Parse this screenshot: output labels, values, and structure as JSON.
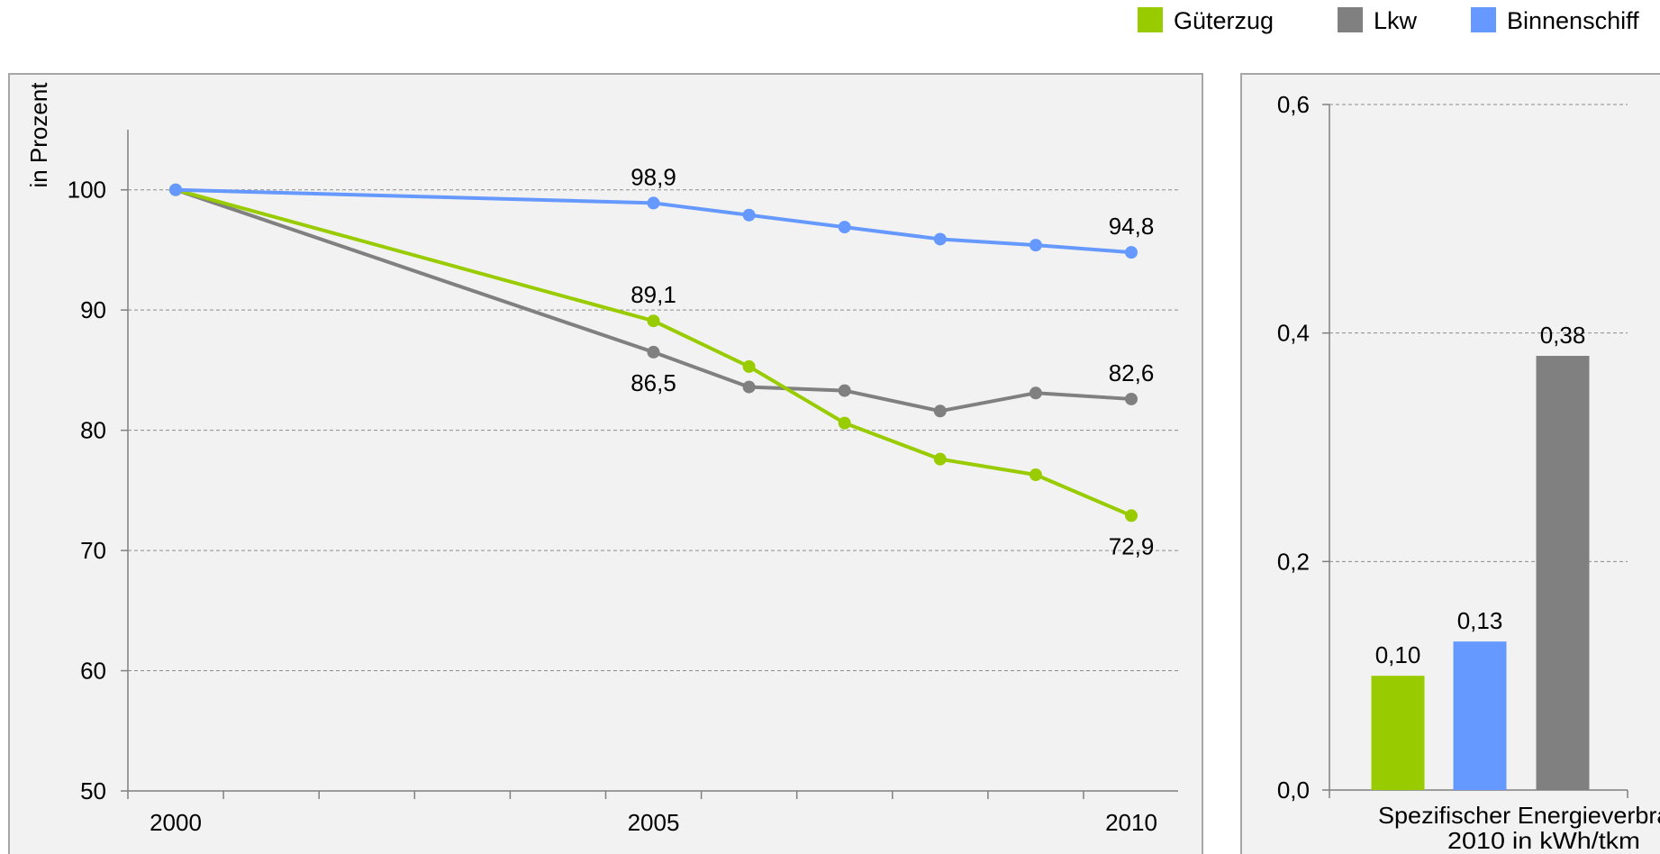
{
  "colors": {
    "gueterzug": "#99cc00",
    "lkw": "#808080",
    "binnenschiff": "#6699ff",
    "panel_bg": "#f2f2f2",
    "panel_border": "#a6a6a6",
    "grid": "#8c8c8c"
  },
  "legend": [
    {
      "label": "Güterzug",
      "color": "#99cc00"
    },
    {
      "label": "Lkw",
      "color": "#808080"
    },
    {
      "label": "Binnenschiff",
      "color": "#6699ff"
    }
  ],
  "chart_data": [
    {
      "type": "line",
      "ylabel": "in Prozent",
      "xlim": [
        2000,
        2011
      ],
      "ylim": [
        50,
        105
      ],
      "x_ticks": [
        2000,
        2005,
        2010
      ],
      "y_ticks": [
        50,
        60,
        70,
        80,
        90,
        100
      ],
      "grid": true,
      "legend_position": "top-right",
      "x": [
        2000,
        2005,
        2006,
        2007,
        2008,
        2009,
        2010
      ],
      "series": [
        {
          "name": "Binnenschiff",
          "x": [
            2000,
            2005,
            2006,
            2007,
            2008,
            2009,
            2010
          ],
          "values": [
            100,
            98.9,
            97.9,
            96.9,
            95.9,
            95.4,
            94.8
          ],
          "data_labels": [
            {
              "x": 2005,
              "text": "98,9",
              "pos": "above"
            },
            {
              "x": 2010,
              "text": "94,8",
              "pos": "above"
            }
          ]
        },
        {
          "name": "Güterzug",
          "x": [
            2000,
            2005,
            2006,
            2007,
            2008,
            2009,
            2010
          ],
          "values": [
            100,
            89.1,
            85.3,
            80.6,
            77.6,
            76.3,
            72.9
          ],
          "data_labels": [
            {
              "x": 2005,
              "text": "89,1",
              "pos": "above"
            },
            {
              "x": 2010,
              "text": "72,9",
              "pos": "below"
            }
          ]
        },
        {
          "name": "Lkw",
          "x": [
            2000,
            2005,
            2006,
            2007,
            2008,
            2009,
            2010
          ],
          "values": [
            100,
            86.5,
            83.6,
            83.3,
            81.6,
            83.1,
            82.6
          ],
          "data_labels": [
            {
              "x": 2005,
              "text": "86,5",
              "pos": "below"
            },
            {
              "x": 2010,
              "text": "82,6",
              "pos": "above"
            }
          ]
        }
      ]
    },
    {
      "type": "bar",
      "xlabel_lines": [
        "Spezifischer Energieverbrauch",
        "2010 in kWh/tkm"
      ],
      "ylim": [
        0,
        0.6
      ],
      "y_ticks": [
        {
          "value": 0.0,
          "label": "0,0"
        },
        {
          "value": 0.2,
          "label": "0,2"
        },
        {
          "value": 0.4,
          "label": "0,4"
        },
        {
          "value": 0.6,
          "label": "0,6"
        }
      ],
      "grid": true,
      "series": [
        {
          "name": "Güterzug",
          "value": 0.1,
          "label": "0,10"
        },
        {
          "name": "Binnenschiff",
          "value": 0.13,
          "label": "0,13"
        },
        {
          "name": "Lkw",
          "value": 0.38,
          "label": "0,38"
        }
      ]
    }
  ]
}
